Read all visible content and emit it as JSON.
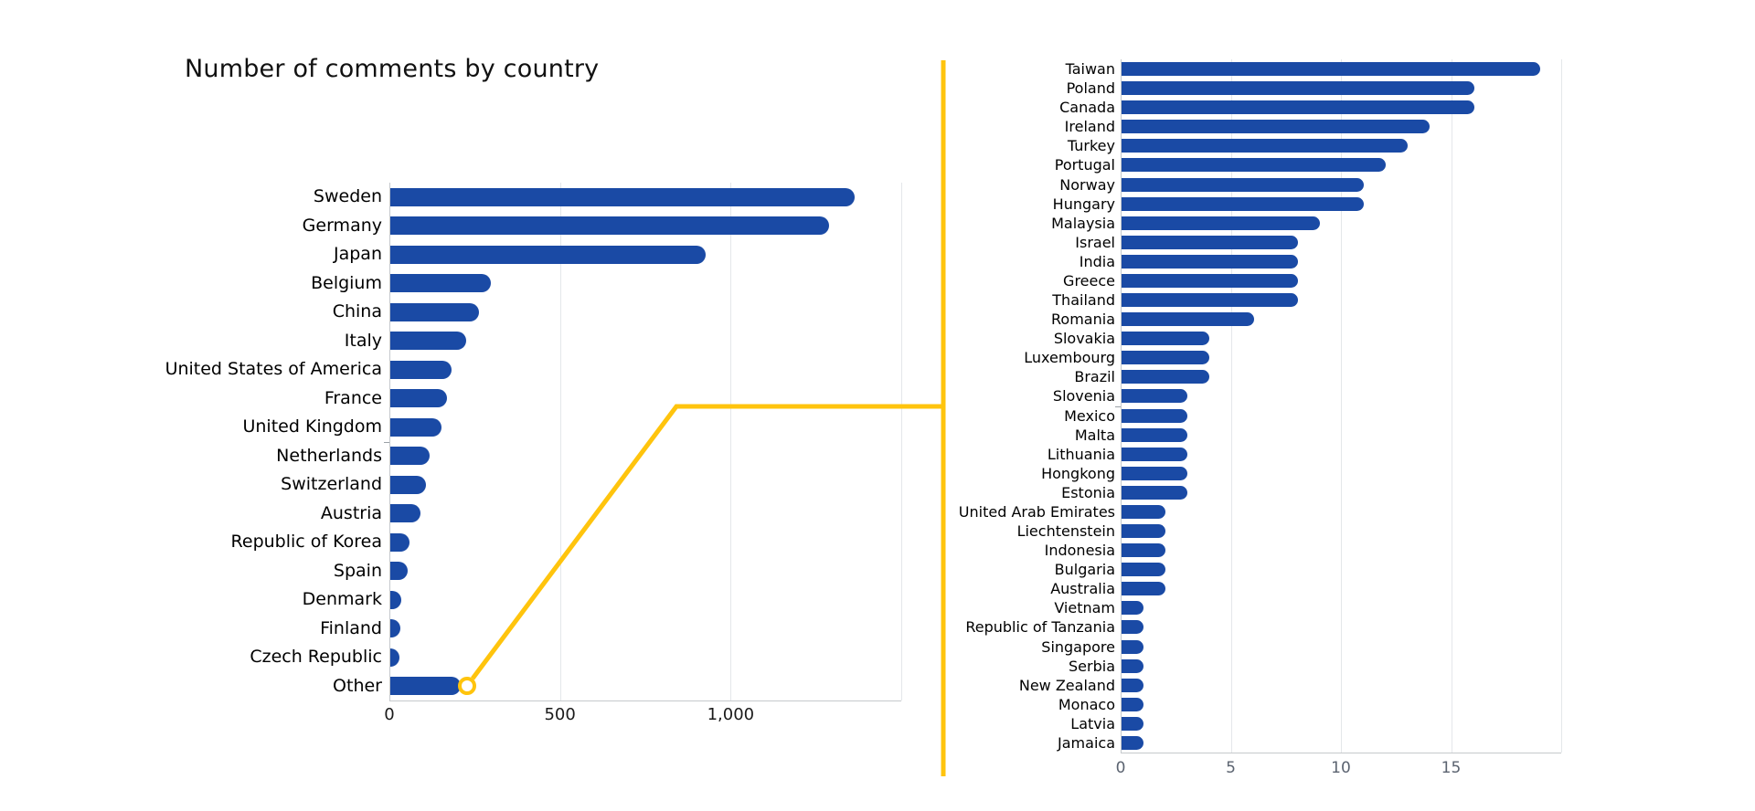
{
  "title": "Number of comments by country",
  "colors": {
    "bar_blue": "#1A4AA5",
    "highlight_yellow": "#FFC40D",
    "gridline_gray": "#e4e7ea",
    "axis_gray": "#c5c9cc",
    "left_tick_text": "#1a1a1a",
    "right_tick_text": "#5b6370"
  },
  "chart_data": [
    {
      "name": "comments-by-country",
      "type": "bar",
      "orientation": "horizontal",
      "title": "Number of comments by country",
      "categories": [
        "Sweden",
        "Germany",
        "Japan",
        "Belgium",
        "China",
        "Italy",
        "United States of America",
        "France",
        "United Kingdom",
        "Netherlands",
        "Switzerland",
        "Austria",
        "Republic of Korea",
        "Spain",
        "Denmark",
        "Finland",
        "Czech Republic",
        "Other"
      ],
      "values": [
        1360,
        1285,
        925,
        295,
        260,
        222,
        180,
        167,
        150,
        115,
        105,
        88,
        56,
        52,
        33,
        30,
        28,
        207
      ],
      "xlabel": "",
      "ylabel": "",
      "xlim": [
        0,
        1500
      ],
      "xticks": [
        {
          "value": 0,
          "label": "0"
        },
        {
          "value": 500,
          "label": "500"
        },
        {
          "value": 1000,
          "label": "1,000"
        }
      ],
      "grid": "vertical-light",
      "legend": "none",
      "highlight": {
        "category": "Other",
        "marker": "open-circle",
        "callout": "yellow connector line to breakdown chart"
      }
    },
    {
      "name": "other-breakdown",
      "type": "bar",
      "orientation": "horizontal",
      "categories": [
        "Taiwan",
        "Poland",
        "Canada",
        "Ireland",
        "Turkey",
        "Portugal",
        "Norway",
        "Hungary",
        "Malaysia",
        "Israel",
        "India",
        "Greece",
        "Thailand",
        "Romania",
        "Slovakia",
        "Luxembourg",
        "Brazil",
        "Slovenia",
        "Mexico",
        "Malta",
        "Lithuania",
        "Hongkong",
        "Estonia",
        "United Arab Emirates",
        "Liechtenstein",
        "Indonesia",
        "Bulgaria",
        "Australia",
        "Vietnam",
        "Republic of Tanzania",
        "Singapore",
        "Serbia",
        "New Zealand",
        "Monaco",
        "Latvia",
        "Jamaica"
      ],
      "values": [
        19,
        16,
        16,
        14,
        13,
        12,
        11,
        11,
        9,
        8,
        8,
        8,
        8,
        6,
        4,
        4,
        4,
        3,
        3,
        3,
        3,
        3,
        3,
        2,
        2,
        2,
        2,
        2,
        1,
        1,
        1,
        1,
        1,
        1,
        1,
        1
      ],
      "xlabel": "",
      "ylabel": "",
      "xlim": [
        0,
        20
      ],
      "xticks": [
        {
          "value": 0,
          "label": "0"
        },
        {
          "value": 5,
          "label": "5"
        },
        {
          "value": 10,
          "label": "10"
        },
        {
          "value": 15,
          "label": "15"
        }
      ],
      "grid": "vertical-light",
      "legend": "none"
    }
  ]
}
